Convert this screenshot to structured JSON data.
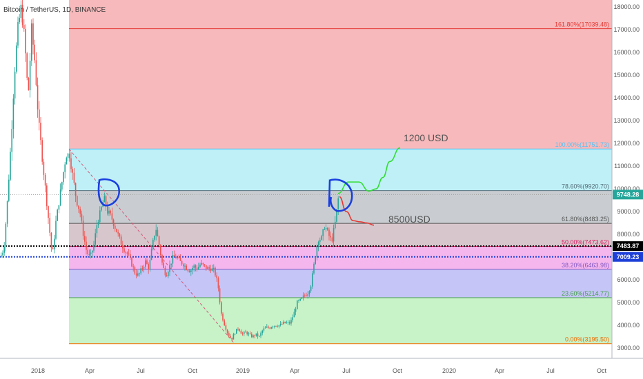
{
  "chart_data": {
    "type": "candlestick",
    "title": "Bitcoin / TetherUS, 1D, BINANCE",
    "xlabel": "",
    "ylabel": "",
    "ylim": [
      2550,
      18300
    ],
    "x_ticks": [
      "2018",
      "Apr",
      "Jul",
      "Oct",
      "2019",
      "Apr",
      "Jul",
      "Oct",
      "2020",
      "Apr",
      "Jul",
      "Oct"
    ],
    "y_ticks": [
      "3000.00",
      "4000.00",
      "5000.00",
      "6000.00",
      "7000.00",
      "8000.00",
      "9000.00",
      "10000.00",
      "11000.00",
      "12000.00",
      "13000.00",
      "14000.00",
      "15000.00",
      "16000.00",
      "17000.00",
      "18000.00"
    ],
    "fib_levels": [
      {
        "label": "161.80%(17039.48)",
        "value": 17039.48,
        "color": "#e53935"
      },
      {
        "label": "100.00%(11751.73)",
        "value": 11751.73,
        "color": "#4fc3f7"
      },
      {
        "label": "78.60%(9920.70)",
        "value": 9920.7,
        "color": "#546e7a"
      },
      {
        "label": "61.80%(8483.25)",
        "value": 8483.25,
        "color": "#555555"
      },
      {
        "label": "50.00%(7473.62)",
        "value": 7473.62,
        "color": "#d81b60"
      },
      {
        "label": "38.20%(6463.98)",
        "value": 6463.98,
        "color": "#7e57c2"
      },
      {
        "label": "23.60%(5214.77)",
        "value": 5214.77,
        "color": "#43a047"
      },
      {
        "label": "0.00%(3195.50)",
        "value": 3195.5,
        "color": "#ef6c00"
      }
    ],
    "fib_zones": [
      {
        "from": 11751.73,
        "to": 18300,
        "color": "#f7b9bb"
      },
      {
        "from": 9920.7,
        "to": 11751.73,
        "color": "#bff0f7"
      },
      {
        "from": 8483.25,
        "to": 9920.7,
        "color": "#c9cdd1"
      },
      {
        "from": 7473.62,
        "to": 8483.25,
        "color": "#d7c6cc"
      },
      {
        "from": 6463.98,
        "to": 7473.62,
        "color": "#f5b6ee"
      },
      {
        "from": 5214.77,
        "to": 6463.98,
        "color": "#c5c5f7"
      },
      {
        "from": 3195.5,
        "to": 5214.77,
        "color": "#c8f2c8"
      }
    ],
    "price_tags": [
      {
        "label": "9748.28",
        "value": 9748.28,
        "bg": "#26a69a",
        "fg": "#ffffff"
      },
      {
        "label": "7483.87",
        "value": 7483.87,
        "bg": "#000000",
        "fg": "#ffffff"
      },
      {
        "label": "7009.23",
        "value": 7009.23,
        "bg": "#1e40d8",
        "fg": "#ffffff"
      }
    ],
    "annotations": [
      {
        "text": "1200 USD",
        "color": "#555555"
      },
      {
        "text": "8500USD",
        "color": "#555555"
      }
    ],
    "price_path": [
      [
        0,
        7000
      ],
      [
        5,
        7400
      ],
      [
        10,
        9500
      ],
      [
        15,
        12000
      ],
      [
        20,
        15000
      ],
      [
        25,
        17000
      ],
      [
        30,
        18000
      ],
      [
        35,
        16500
      ],
      [
        40,
        14000
      ],
      [
        45,
        17000
      ],
      [
        50,
        15500
      ],
      [
        55,
        13000
      ],
      [
        60,
        11500
      ],
      [
        65,
        10000
      ],
      [
        70,
        8500
      ],
      [
        75,
        7000
      ],
      [
        80,
        8500
      ],
      [
        85,
        9500
      ],
      [
        90,
        10500
      ],
      [
        95,
        11500
      ],
      [
        100,
        11500
      ],
      [
        105,
        10500
      ],
      [
        110,
        9500
      ],
      [
        115,
        9000
      ],
      [
        120,
        8000
      ],
      [
        125,
        7200
      ],
      [
        130,
        7000
      ],
      [
        135,
        7500
      ],
      [
        140,
        8500
      ],
      [
        145,
        9000
      ],
      [
        150,
        9600
      ],
      [
        155,
        9000
      ],
      [
        160,
        8800
      ],
      [
        165,
        8400
      ],
      [
        170,
        8000
      ],
      [
        175,
        7600
      ],
      [
        180,
        7300
      ],
      [
        185,
        7100
      ],
      [
        190,
        6700
      ],
      [
        195,
        6300
      ],
      [
        200,
        6200
      ],
      [
        205,
        6500
      ],
      [
        210,
        6800
      ],
      [
        215,
        6500
      ],
      [
        220,
        7500
      ],
      [
        225,
        8300
      ],
      [
        230,
        7500
      ],
      [
        235,
        6600
      ],
      [
        240,
        6200
      ],
      [
        245,
        6600
      ],
      [
        250,
        7000
      ],
      [
        255,
        7000
      ],
      [
        260,
        6800
      ],
      [
        265,
        6700
      ],
      [
        270,
        6500
      ],
      [
        275,
        6400
      ],
      [
        280,
        6600
      ],
      [
        285,
        6500
      ],
      [
        290,
        6700
      ],
      [
        295,
        6600
      ],
      [
        300,
        6500
      ],
      [
        305,
        6500
      ],
      [
        310,
        6400
      ],
      [
        315,
        5800
      ],
      [
        320,
        4500
      ],
      [
        325,
        4000
      ],
      [
        330,
        3600
      ],
      [
        335,
        3400
      ],
      [
        340,
        3700
      ],
      [
        345,
        3900
      ],
      [
        350,
        3600
      ],
      [
        355,
        3700
      ],
      [
        360,
        3600
      ],
      [
        365,
        3500
      ],
      [
        370,
        3600
      ],
      [
        375,
        3500
      ],
      [
        380,
        3800
      ],
      [
        385,
        3900
      ],
      [
        390,
        3900
      ],
      [
        395,
        4000
      ],
      [
        400,
        4000
      ],
      [
        405,
        4000
      ],
      [
        410,
        4100
      ],
      [
        415,
        4100
      ],
      [
        420,
        4100
      ],
      [
        425,
        4500
      ],
      [
        430,
        5000
      ],
      [
        435,
        5100
      ],
      [
        440,
        5300
      ],
      [
        445,
        5400
      ],
      [
        450,
        5800
      ],
      [
        455,
        6800
      ],
      [
        460,
        7800
      ],
      [
        465,
        7800
      ],
      [
        470,
        8400
      ],
      [
        475,
        8000
      ],
      [
        480,
        7700
      ],
      [
        485,
        8500
      ],
      [
        490,
        9700
      ]
    ],
    "forecast_green": [
      [
        490,
        9800
      ],
      [
        505,
        10300
      ],
      [
        520,
        10300
      ],
      [
        535,
        9900
      ],
      [
        545,
        10000
      ],
      [
        555,
        10500
      ],
      [
        565,
        11200
      ],
      [
        580,
        11800
      ]
    ],
    "forecast_red": [
      [
        492,
        9650
      ],
      [
        502,
        9000
      ],
      [
        512,
        8600
      ],
      [
        522,
        8550
      ],
      [
        532,
        8500
      ],
      [
        542,
        8400
      ]
    ]
  }
}
